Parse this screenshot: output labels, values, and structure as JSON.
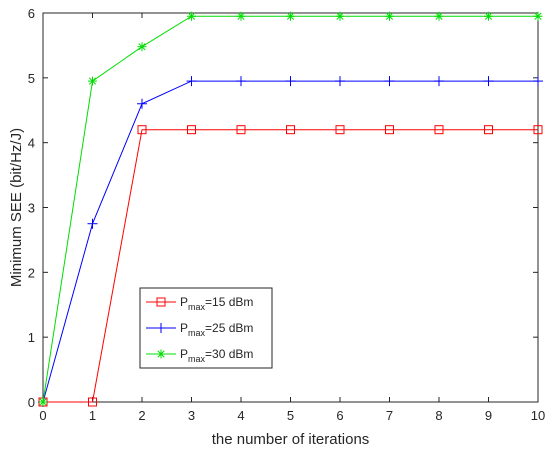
{
  "chart_data": {
    "type": "line",
    "title": "",
    "xlabel": "the number of iterations",
    "ylabel": "Minimum SEE (bit/Hz/J)",
    "xlim": [
      0,
      10
    ],
    "ylim": [
      0,
      6
    ],
    "xticks": [
      "0",
      "1",
      "2",
      "3",
      "4",
      "5",
      "6",
      "7",
      "8",
      "9",
      "10"
    ],
    "yticks": [
      "0",
      "1",
      "2",
      "3",
      "4",
      "5",
      "6"
    ],
    "grid": false,
    "legend_position": "lower-left",
    "x": [
      0,
      1,
      2,
      3,
      4,
      5,
      6,
      7,
      8,
      9,
      10
    ],
    "series": [
      {
        "name_main": "P",
        "name_sub": "max",
        "name_suffix": "=15 dBm",
        "color": "#ff0000",
        "marker": "square",
        "values": [
          0,
          0,
          4.2,
          4.2,
          4.2,
          4.2,
          4.2,
          4.2,
          4.2,
          4.2,
          4.2
        ]
      },
      {
        "name_main": "P",
        "name_sub": "max",
        "name_suffix": "=25 dBm",
        "color": "#0000ff",
        "marker": "plus",
        "values": [
          0,
          2.75,
          4.6,
          4.95,
          4.95,
          4.95,
          4.95,
          4.95,
          4.95,
          4.95,
          4.95
        ]
      },
      {
        "name_main": "P",
        "name_sub": "max",
        "name_suffix": "=30 dBm",
        "color": "#00dd00",
        "marker": "asterisk",
        "values": [
          0,
          4.95,
          5.48,
          5.95,
          5.95,
          5.95,
          5.95,
          5.95,
          5.95,
          5.95,
          5.95
        ]
      }
    ]
  }
}
